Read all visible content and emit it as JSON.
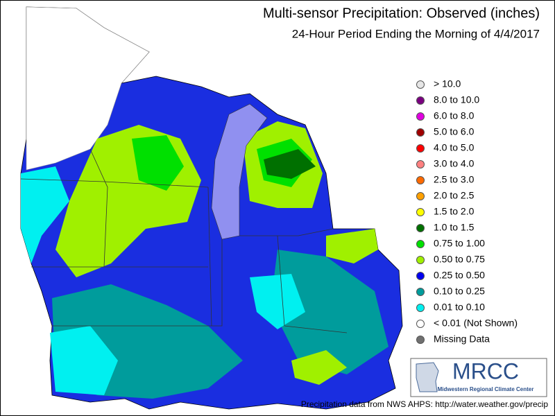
{
  "header": {
    "title": "Multi-sensor Precipitation:  Observed (inches)",
    "subtitle": "24-Hour Period Ending the Morning of 4/4/2017"
  },
  "legend": {
    "items": [
      {
        "label": "> 10.0",
        "color": "#e6e6e6"
      },
      {
        "label": "8.0 to 10.0",
        "color": "#7a0080"
      },
      {
        "label": "6.0 to 8.0",
        "color": "#e000e0"
      },
      {
        "label": "5.0 to 6.0",
        "color": "#a00000"
      },
      {
        "label": "4.0 to 5.0",
        "color": "#ff0000"
      },
      {
        "label": "3.0 to 4.0",
        "color": "#ff8080"
      },
      {
        "label": "2.5 to 3.0",
        "color": "#ff6a00"
      },
      {
        "label": "2.0 to 2.5",
        "color": "#ffa000"
      },
      {
        "label": "1.5 to 2.0",
        "color": "#ffff00"
      },
      {
        "label": "1.0 to 1.5",
        "color": "#007000"
      },
      {
        "label": "0.75 to 1.00",
        "color": "#00e000"
      },
      {
        "label": "0.50 to 0.75",
        "color": "#a0f000"
      },
      {
        "label": "0.25 to 0.50",
        "color": "#0000f0"
      },
      {
        "label": "0.10 to 0.25",
        "color": "#009c9c"
      },
      {
        "label": "0.01 to 0.10",
        "color": "#00f0f0"
      },
      {
        "label": "< 0.01 (Not Shown)",
        "color": "#ffffff"
      },
      {
        "label": "Missing Data",
        "color": "#707070"
      }
    ]
  },
  "logo": {
    "name": "MRCC",
    "subtitle": "Midwestern Regional Climate Center"
  },
  "footer": {
    "credit": "Precipitation data from NWS AHPS: http://water.weather.gov/precip"
  }
}
